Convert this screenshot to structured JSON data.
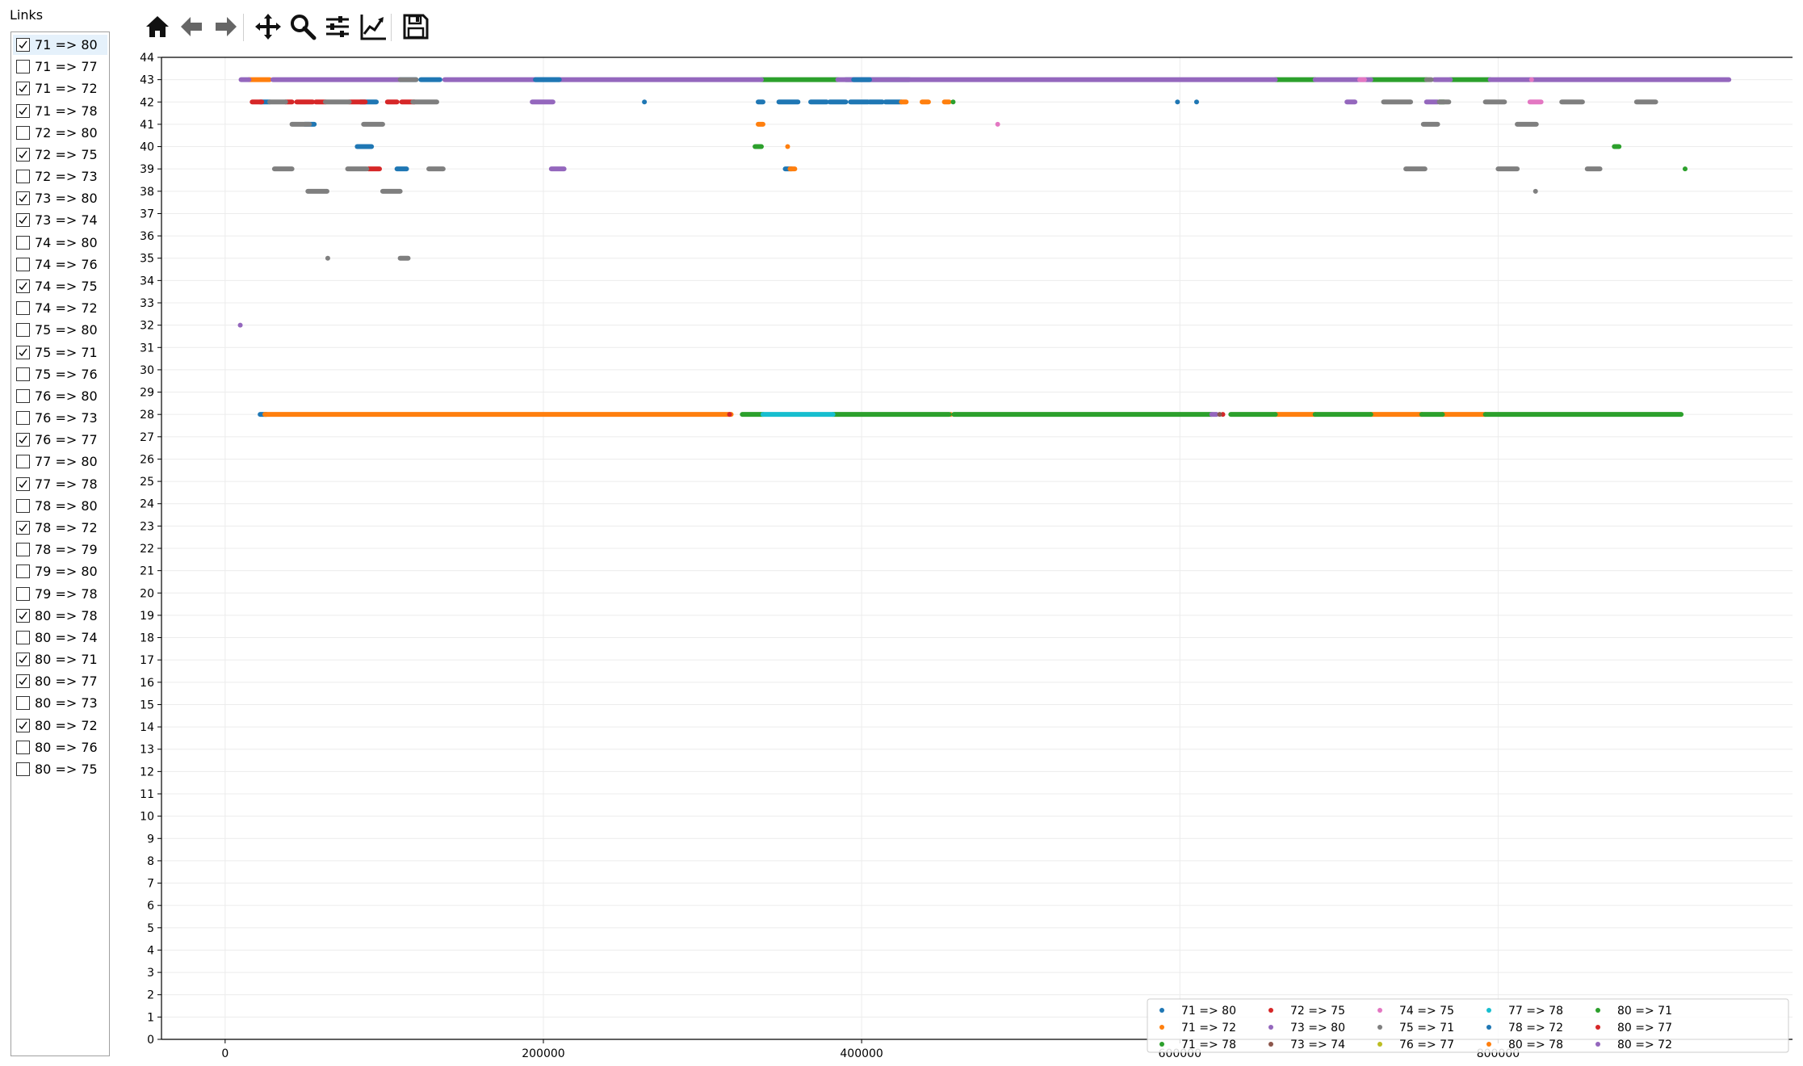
{
  "panel": {
    "title": "Links"
  },
  "links": [
    {
      "label": "71 => 80",
      "checked": true
    },
    {
      "label": "71 => 77",
      "checked": false
    },
    {
      "label": "71 => 72",
      "checked": true
    },
    {
      "label": "71 => 78",
      "checked": true
    },
    {
      "label": "72 => 80",
      "checked": false
    },
    {
      "label": "72 => 75",
      "checked": true
    },
    {
      "label": "72 => 73",
      "checked": false
    },
    {
      "label": "73 => 80",
      "checked": true
    },
    {
      "label": "73 => 74",
      "checked": true
    },
    {
      "label": "74 => 80",
      "checked": false
    },
    {
      "label": "74 => 76",
      "checked": false
    },
    {
      "label": "74 => 75",
      "checked": true
    },
    {
      "label": "74 => 72",
      "checked": false
    },
    {
      "label": "75 => 80",
      "checked": false
    },
    {
      "label": "75 => 71",
      "checked": true
    },
    {
      "label": "75 => 76",
      "checked": false
    },
    {
      "label": "76 => 80",
      "checked": false
    },
    {
      "label": "76 => 73",
      "checked": false
    },
    {
      "label": "76 => 77",
      "checked": true
    },
    {
      "label": "77 => 80",
      "checked": false
    },
    {
      "label": "77 => 78",
      "checked": true
    },
    {
      "label": "78 => 80",
      "checked": false
    },
    {
      "label": "78 => 72",
      "checked": true
    },
    {
      "label": "78 => 79",
      "checked": false
    },
    {
      "label": "79 => 80",
      "checked": false
    },
    {
      "label": "79 => 78",
      "checked": false
    },
    {
      "label": "80 => 78",
      "checked": true
    },
    {
      "label": "80 => 74",
      "checked": false
    },
    {
      "label": "80 => 71",
      "checked": true
    },
    {
      "label": "80 => 77",
      "checked": true
    },
    {
      "label": "80 => 73",
      "checked": false
    },
    {
      "label": "80 => 72",
      "checked": true
    },
    {
      "label": "80 => 76",
      "checked": false
    },
    {
      "label": "80 => 75",
      "checked": false
    }
  ],
  "toolbar": [
    {
      "name": "home-icon",
      "tool": "home"
    },
    {
      "name": "back-icon",
      "tool": "back"
    },
    {
      "name": "forward-icon",
      "tool": "forward"
    },
    {
      "name": "pan-icon",
      "tool": "pan"
    },
    {
      "name": "zoom-icon",
      "tool": "zoom"
    },
    {
      "name": "subplots-icon",
      "tool": "subplots"
    },
    {
      "name": "edit-axis-icon",
      "tool": "edit"
    },
    {
      "name": "save-icon",
      "tool": "save"
    }
  ],
  "chart_data": {
    "type": "scatter",
    "title": "",
    "xlabel": "",
    "ylabel": "",
    "xlim": [
      -40000,
      985000
    ],
    "ylim": [
      0,
      44
    ],
    "xticks": [
      0,
      200000,
      400000,
      600000,
      800000
    ],
    "xtick_labels": [
      "0",
      "200000",
      "400000",
      "600000",
      "800000"
    ],
    "yticks": [
      0,
      1,
      2,
      3,
      4,
      5,
      6,
      7,
      8,
      9,
      10,
      11,
      12,
      13,
      14,
      15,
      16,
      17,
      18,
      19,
      20,
      21,
      22,
      23,
      24,
      25,
      26,
      27,
      28,
      29,
      30,
      31,
      32,
      33,
      34,
      35,
      36,
      37,
      38,
      39,
      40,
      41,
      42,
      43,
      44
    ],
    "grid": true,
    "legend_position": "lower right",
    "series": [
      {
        "name": "71 => 80",
        "color": "#1f77b4",
        "segments": [
          [
            42,
            22000,
            28000
          ],
          [
            28,
            22000,
            26000
          ],
          [
            43,
            110000,
            120000
          ],
          [
            43,
            195000,
            210000
          ],
          [
            42,
            85000,
            95000
          ],
          [
            41,
            50000,
            56000
          ],
          [
            40,
            83000,
            92000
          ],
          [
            39,
            108000,
            114000
          ],
          [
            42,
            263000,
            264000
          ],
          [
            42,
            335000,
            338000
          ],
          [
            42,
            348000,
            360000
          ],
          [
            42,
            368000,
            378000
          ],
          [
            42,
            380000,
            390000
          ],
          [
            42,
            393000,
            404000
          ],
          [
            42,
            405000,
            413000
          ],
          [
            42,
            415000,
            425000
          ],
          [
            43,
            390000,
            430000
          ],
          [
            39,
            352000,
            356000
          ],
          [
            42,
            598000,
            599000
          ],
          [
            42,
            610000,
            611000
          ]
        ]
      },
      {
        "name": "71 => 72",
        "color": "#ff7f0e",
        "segments": [
          [
            43,
            15000,
            28000
          ],
          [
            28,
            25000,
            318000
          ],
          [
            41,
            335000,
            338000
          ],
          [
            40,
            353000,
            354000
          ],
          [
            42,
            425000,
            428000
          ],
          [
            42,
            438000,
            442000
          ],
          [
            42,
            452000,
            455000
          ],
          [
            28,
            455000,
            457000
          ],
          [
            28,
            660000,
            685000
          ],
          [
            28,
            720000,
            752000
          ],
          [
            28,
            765000,
            792000
          ],
          [
            39,
            355000,
            358000
          ]
        ]
      },
      {
        "name": "71 => 78",
        "color": "#2ca02c",
        "segments": [
          [
            28,
            325000,
            338000
          ],
          [
            28,
            382000,
            455000
          ],
          [
            28,
            458000,
            620000
          ],
          [
            28,
            632000,
            660000
          ],
          [
            28,
            685000,
            720000
          ],
          [
            28,
            752000,
            765000
          ],
          [
            28,
            792000,
            915000
          ],
          [
            43,
            337000,
            385000
          ],
          [
            43,
            660000,
            685000
          ],
          [
            43,
            720000,
            755000
          ],
          [
            43,
            770000,
            795000
          ],
          [
            40,
            333000,
            337000
          ],
          [
            42,
            457000,
            458000
          ],
          [
            42,
            763000,
            766000
          ],
          [
            40,
            873000,
            876000
          ],
          [
            39,
            917000,
            918000
          ]
        ]
      },
      {
        "name": "72 => 75",
        "color": "#d62728",
        "segments": [
          [
            42,
            17000,
            23000
          ],
          [
            42,
            38000,
            42000
          ],
          [
            42,
            45000,
            55000
          ],
          [
            42,
            57000,
            63000
          ],
          [
            42,
            78000,
            88000
          ],
          [
            42,
            102000,
            108000
          ],
          [
            42,
            111000,
            119000
          ],
          [
            39,
            90000,
            97000
          ],
          [
            28,
            316000,
            318000
          ],
          [
            28,
            626000,
            628000
          ]
        ]
      },
      {
        "name": "73 => 80",
        "color": "#9467bd",
        "segments": [
          [
            43,
            10000,
            15000
          ],
          [
            43,
            30000,
            110000
          ],
          [
            43,
            138000,
            195000
          ],
          [
            43,
            210000,
            337000
          ],
          [
            43,
            385000,
            660000
          ],
          [
            43,
            685000,
            720000
          ],
          [
            43,
            760000,
            770000
          ],
          [
            43,
            795000,
            945000
          ],
          [
            42,
            193000,
            206000
          ],
          [
            42,
            705000,
            710000
          ],
          [
            42,
            755000,
            762000
          ],
          [
            39,
            205000,
            213000
          ],
          [
            32,
            9000,
            10000
          ],
          [
            28,
            620000,
            623000
          ]
        ]
      },
      {
        "name": "73 => 74",
        "color": "#8c564b",
        "segments": [
          [
            28,
            624000,
            626000
          ]
        ]
      },
      {
        "name": "74 => 75",
        "color": "#e377c2",
        "segments": [
          [
            42,
            820000,
            827000
          ],
          [
            41,
            485000,
            486000
          ],
          [
            43,
            713000,
            716000
          ],
          [
            43,
            820000,
            822000
          ]
        ]
      },
      {
        "name": "75 => 71",
        "color": "#7f7f7f",
        "segments": [
          [
            43,
            110000,
            120000
          ],
          [
            42,
            28000,
            38000
          ],
          [
            42,
            63000,
            78000
          ],
          [
            42,
            118000,
            133000
          ],
          [
            41,
            42000,
            53000
          ],
          [
            41,
            87000,
            99000
          ],
          [
            39,
            31000,
            42000
          ],
          [
            39,
            77000,
            89000
          ],
          [
            39,
            128000,
            137000
          ],
          [
            38,
            52000,
            64000
          ],
          [
            38,
            99000,
            110000
          ],
          [
            35,
            64000,
            65000
          ],
          [
            35,
            110000,
            115000
          ],
          [
            42,
            728000,
            745000
          ],
          [
            42,
            763000,
            769000
          ],
          [
            42,
            792000,
            804000
          ],
          [
            42,
            840000,
            853000
          ],
          [
            42,
            887000,
            899000
          ],
          [
            41,
            753000,
            762000
          ],
          [
            41,
            812000,
            824000
          ],
          [
            39,
            742000,
            754000
          ],
          [
            39,
            800000,
            812000
          ],
          [
            39,
            856000,
            864000
          ],
          [
            38,
            823000,
            824000
          ],
          [
            43,
            755000,
            758000
          ]
        ]
      },
      {
        "name": "76 => 77",
        "color": "#bcbd22",
        "segments": []
      },
      {
        "name": "77 => 78",
        "color": "#17becf",
        "segments": [
          [
            28,
            338000,
            382000
          ]
        ]
      },
      {
        "name": "78 => 72",
        "color": "#1f77b4",
        "segments": [
          [
            43,
            123000,
            135000
          ],
          [
            43,
            195000,
            210000
          ],
          [
            43,
            395000,
            405000
          ]
        ]
      },
      {
        "name": "80 => 78",
        "color": "#ff7f0e",
        "segments": []
      },
      {
        "name": "80 => 71",
        "color": "#2ca02c",
        "segments": []
      },
      {
        "name": "80 => 77",
        "color": "#d62728",
        "segments": []
      },
      {
        "name": "80 => 72",
        "color": "#9467bd",
        "segments": []
      }
    ]
  }
}
